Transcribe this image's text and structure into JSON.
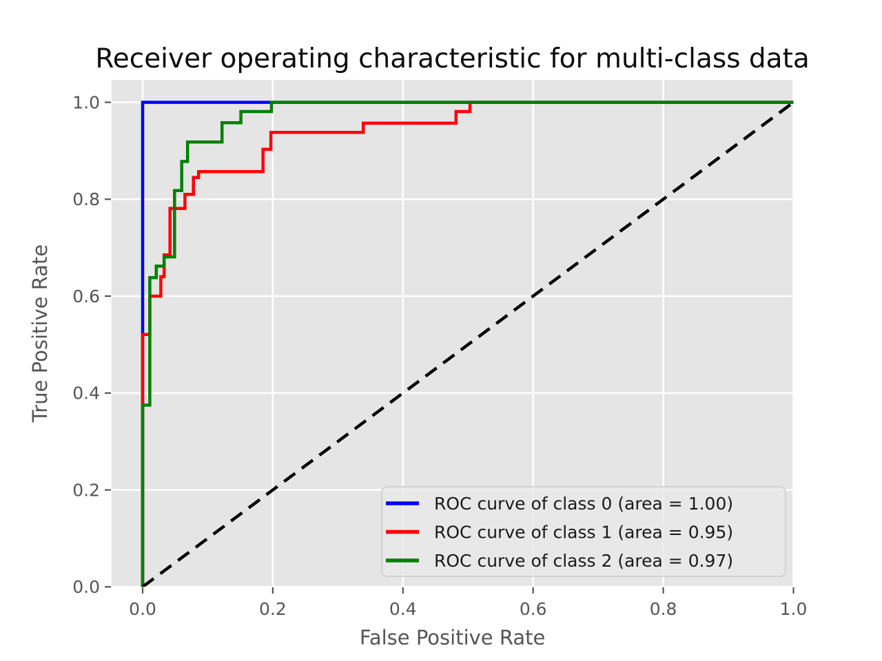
{
  "chart_data": {
    "type": "line",
    "subtype": "roc-step-curves",
    "title": "Receiver operating characteristic for multi-class data",
    "xlabel": "False Positive Rate",
    "ylabel": "True Positive Rate",
    "xlim": [
      -0.048,
      1.0
    ],
    "ylim": [
      0.0,
      1.046
    ],
    "x_tick_labels": [
      "0.0",
      "0.2",
      "0.4",
      "0.6",
      "0.8",
      "1.0"
    ],
    "y_tick_labels": [
      "0.0",
      "0.2",
      "0.4",
      "0.6",
      "0.8",
      "1.0"
    ],
    "grid": true,
    "plot_background": "#e5e5e5",
    "grid_color": "#ffffff",
    "legend_position": "lower right",
    "series": [
      {
        "name": "ROC curve of class 0 (area = 1.00)",
        "class": 0,
        "area": 1.0,
        "color": "#0000ff",
        "points": [
          [
            0,
            0
          ],
          [
            0,
            1
          ],
          [
            1,
            1
          ]
        ]
      },
      {
        "name": "ROC curve of class 1 (area = 0.95)",
        "class": 1,
        "area": 0.95,
        "color": "#ff0000",
        "points": [
          [
            0,
            0
          ],
          [
            0,
            0.521
          ],
          [
            0.011,
            0.521
          ],
          [
            0.011,
            0.6
          ],
          [
            0.028,
            0.6
          ],
          [
            0.028,
            0.64
          ],
          [
            0.033,
            0.64
          ],
          [
            0.033,
            0.685
          ],
          [
            0.042,
            0.685
          ],
          [
            0.042,
            0.781
          ],
          [
            0.065,
            0.781
          ],
          [
            0.065,
            0.81
          ],
          [
            0.078,
            0.81
          ],
          [
            0.078,
            0.845
          ],
          [
            0.086,
            0.845
          ],
          [
            0.086,
            0.857
          ],
          [
            0.185,
            0.857
          ],
          [
            0.185,
            0.903
          ],
          [
            0.197,
            0.903
          ],
          [
            0.197,
            0.938
          ],
          [
            0.339,
            0.938
          ],
          [
            0.339,
            0.957
          ],
          [
            0.4815,
            0.957
          ],
          [
            0.4815,
            0.981
          ],
          [
            0.503,
            0.981
          ],
          [
            0.503,
            1
          ],
          [
            1,
            1
          ]
        ]
      },
      {
        "name": "ROC curve of class 2 (area = 0.97)",
        "class": 2,
        "area": 0.97,
        "color": "#008000",
        "points": [
          [
            0,
            0
          ],
          [
            0,
            0.375
          ],
          [
            0.011,
            0.375
          ],
          [
            0.011,
            0.638
          ],
          [
            0.021,
            0.638
          ],
          [
            0.021,
            0.662
          ],
          [
            0.033,
            0.662
          ],
          [
            0.033,
            0.681
          ],
          [
            0.049,
            0.681
          ],
          [
            0.049,
            0.818
          ],
          [
            0.06,
            0.818
          ],
          [
            0.06,
            0.878
          ],
          [
            0.069,
            0.878
          ],
          [
            0.069,
            0.918
          ],
          [
            0.122,
            0.918
          ],
          [
            0.122,
            0.958
          ],
          [
            0.151,
            0.958
          ],
          [
            0.151,
            0.981
          ],
          [
            0.198,
            0.981
          ],
          [
            0.198,
            1
          ],
          [
            1,
            1
          ]
        ]
      }
    ],
    "reference_line": {
      "name": "chance-diagonal",
      "style": "dashed",
      "color": "#000000",
      "points": [
        [
          0,
          0
        ],
        [
          1,
          1
        ]
      ]
    }
  }
}
